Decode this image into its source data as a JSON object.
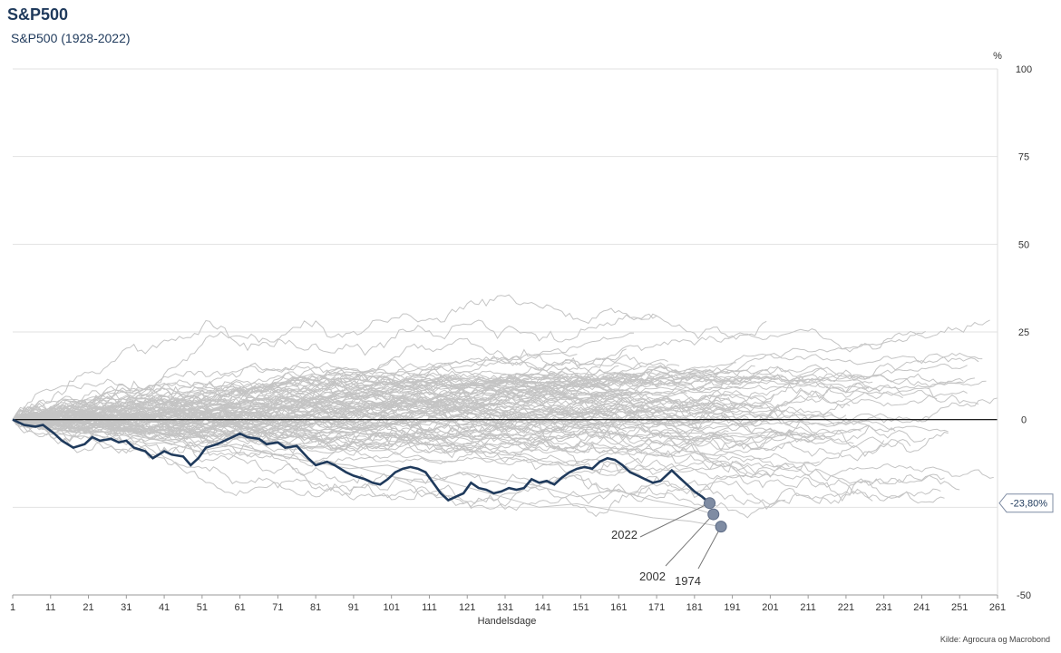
{
  "header": {
    "title": "S&P500",
    "subtitle": "S&P500 (1928-2022)"
  },
  "source": "Kilde: Agrocura og Macrobond",
  "colors": {
    "highlight": "#1f3a5c",
    "background_lines": "#c4c4c4",
    "zero_line": "#000000",
    "marker": "#7f8ca3"
  },
  "chart_data": {
    "type": "line",
    "title": "S&P500",
    "subtitle": "S&P500 (1928-2022)",
    "xlabel": "Handelsdage",
    "ylabel": "%",
    "xlim": [
      1,
      261
    ],
    "ylim": [
      -50,
      100
    ],
    "x_ticks": [
      1,
      11,
      21,
      31,
      41,
      51,
      61,
      71,
      81,
      91,
      101,
      111,
      121,
      131,
      141,
      151,
      161,
      171,
      181,
      191,
      201,
      211,
      221,
      231,
      241,
      251,
      261
    ],
    "y_ticks": [
      -50,
      -25,
      0,
      25,
      50,
      75,
      100
    ],
    "grid": true,
    "current_value_label": "-23,80%",
    "series": [
      {
        "name": "2022",
        "role": "highlight",
        "points": [
          [
            1,
            0
          ],
          [
            4,
            -1.5
          ],
          [
            7,
            -2
          ],
          [
            9,
            -1.5
          ],
          [
            12,
            -4
          ],
          [
            14,
            -6
          ],
          [
            17,
            -8
          ],
          [
            20,
            -7
          ],
          [
            22,
            -5
          ],
          [
            24,
            -6
          ],
          [
            27,
            -5.5
          ],
          [
            29,
            -6.5
          ],
          [
            31,
            -6
          ],
          [
            33,
            -8
          ],
          [
            36,
            -9
          ],
          [
            38,
            -11
          ],
          [
            41,
            -9
          ],
          [
            43,
            -10
          ],
          [
            46,
            -10.5
          ],
          [
            48,
            -13
          ],
          [
            50,
            -11
          ],
          [
            52,
            -8
          ],
          [
            55,
            -7
          ],
          [
            58,
            -5.5
          ],
          [
            61,
            -4
          ],
          [
            63,
            -5
          ],
          [
            66,
            -5.5
          ],
          [
            68,
            -7
          ],
          [
            71,
            -6.5
          ],
          [
            73,
            -8
          ],
          [
            76,
            -7.5
          ],
          [
            79,
            -11
          ],
          [
            81,
            -13
          ],
          [
            84,
            -12
          ],
          [
            86,
            -13
          ],
          [
            89,
            -15
          ],
          [
            91,
            -16
          ],
          [
            94,
            -17
          ],
          [
            96,
            -18
          ],
          [
            98,
            -18.5
          ],
          [
            100,
            -17
          ],
          [
            102,
            -15
          ],
          [
            104,
            -14
          ],
          [
            106,
            -13.5
          ],
          [
            108,
            -14
          ],
          [
            110,
            -15
          ],
          [
            112,
            -18
          ],
          [
            114,
            -21
          ],
          [
            116,
            -23
          ],
          [
            118,
            -22
          ],
          [
            120,
            -21
          ],
          [
            122,
            -18
          ],
          [
            124,
            -19.5
          ],
          [
            126,
            -20
          ],
          [
            128,
            -21
          ],
          [
            130,
            -20.5
          ],
          [
            132,
            -19.5
          ],
          [
            134,
            -20
          ],
          [
            136,
            -19.5
          ],
          [
            138,
            -17
          ],
          [
            140,
            -18
          ],
          [
            142,
            -17.5
          ],
          [
            144,
            -18.5
          ],
          [
            146,
            -16.5
          ],
          [
            148,
            -15
          ],
          [
            150,
            -14
          ],
          [
            152,
            -13.5
          ],
          [
            154,
            -14
          ],
          [
            156,
            -12
          ],
          [
            158,
            -11
          ],
          [
            160,
            -11.5
          ],
          [
            162,
            -13
          ],
          [
            164,
            -15
          ],
          [
            166,
            -16
          ],
          [
            168,
            -17
          ],
          [
            170,
            -18
          ],
          [
            172,
            -17.5
          ],
          [
            175,
            -14.5
          ],
          [
            177,
            -16.5
          ],
          [
            179,
            -18.5
          ],
          [
            181,
            -20.5
          ],
          [
            183,
            -22
          ],
          [
            185,
            -23.8
          ]
        ]
      },
      {
        "name": "2002",
        "role": "labeled",
        "points": [
          [
            1,
            0
          ],
          [
            10,
            -2
          ],
          [
            20,
            -4
          ],
          [
            30,
            -3
          ],
          [
            40,
            -6
          ],
          [
            50,
            -9
          ],
          [
            60,
            -7
          ],
          [
            70,
            -10
          ],
          [
            80,
            -12
          ],
          [
            90,
            -13
          ],
          [
            100,
            -16
          ],
          [
            110,
            -18
          ],
          [
            120,
            -15
          ],
          [
            130,
            -17
          ],
          [
            140,
            -19
          ],
          [
            150,
            -22
          ],
          [
            160,
            -20
          ],
          [
            170,
            -23
          ],
          [
            180,
            -25
          ],
          [
            186,
            -27
          ]
        ]
      },
      {
        "name": "1974",
        "role": "labeled",
        "points": [
          [
            1,
            0
          ],
          [
            10,
            -1
          ],
          [
            20,
            -3
          ],
          [
            30,
            -4
          ],
          [
            40,
            -6
          ],
          [
            50,
            -5
          ],
          [
            60,
            -8
          ],
          [
            70,
            -10
          ],
          [
            80,
            -12
          ],
          [
            90,
            -14
          ],
          [
            100,
            -13
          ],
          [
            110,
            -16
          ],
          [
            120,
            -19
          ],
          [
            130,
            -22
          ],
          [
            140,
            -25
          ],
          [
            150,
            -24
          ],
          [
            160,
            -26
          ],
          [
            170,
            -28
          ],
          [
            180,
            -29
          ],
          [
            188,
            -30.5
          ]
        ]
      }
    ],
    "annotations": [
      {
        "text": "2022",
        "series": "2022"
      },
      {
        "text": "2002",
        "series": "2002"
      },
      {
        "text": "1974",
        "series": "1974"
      }
    ],
    "background_series_count": 95
  }
}
